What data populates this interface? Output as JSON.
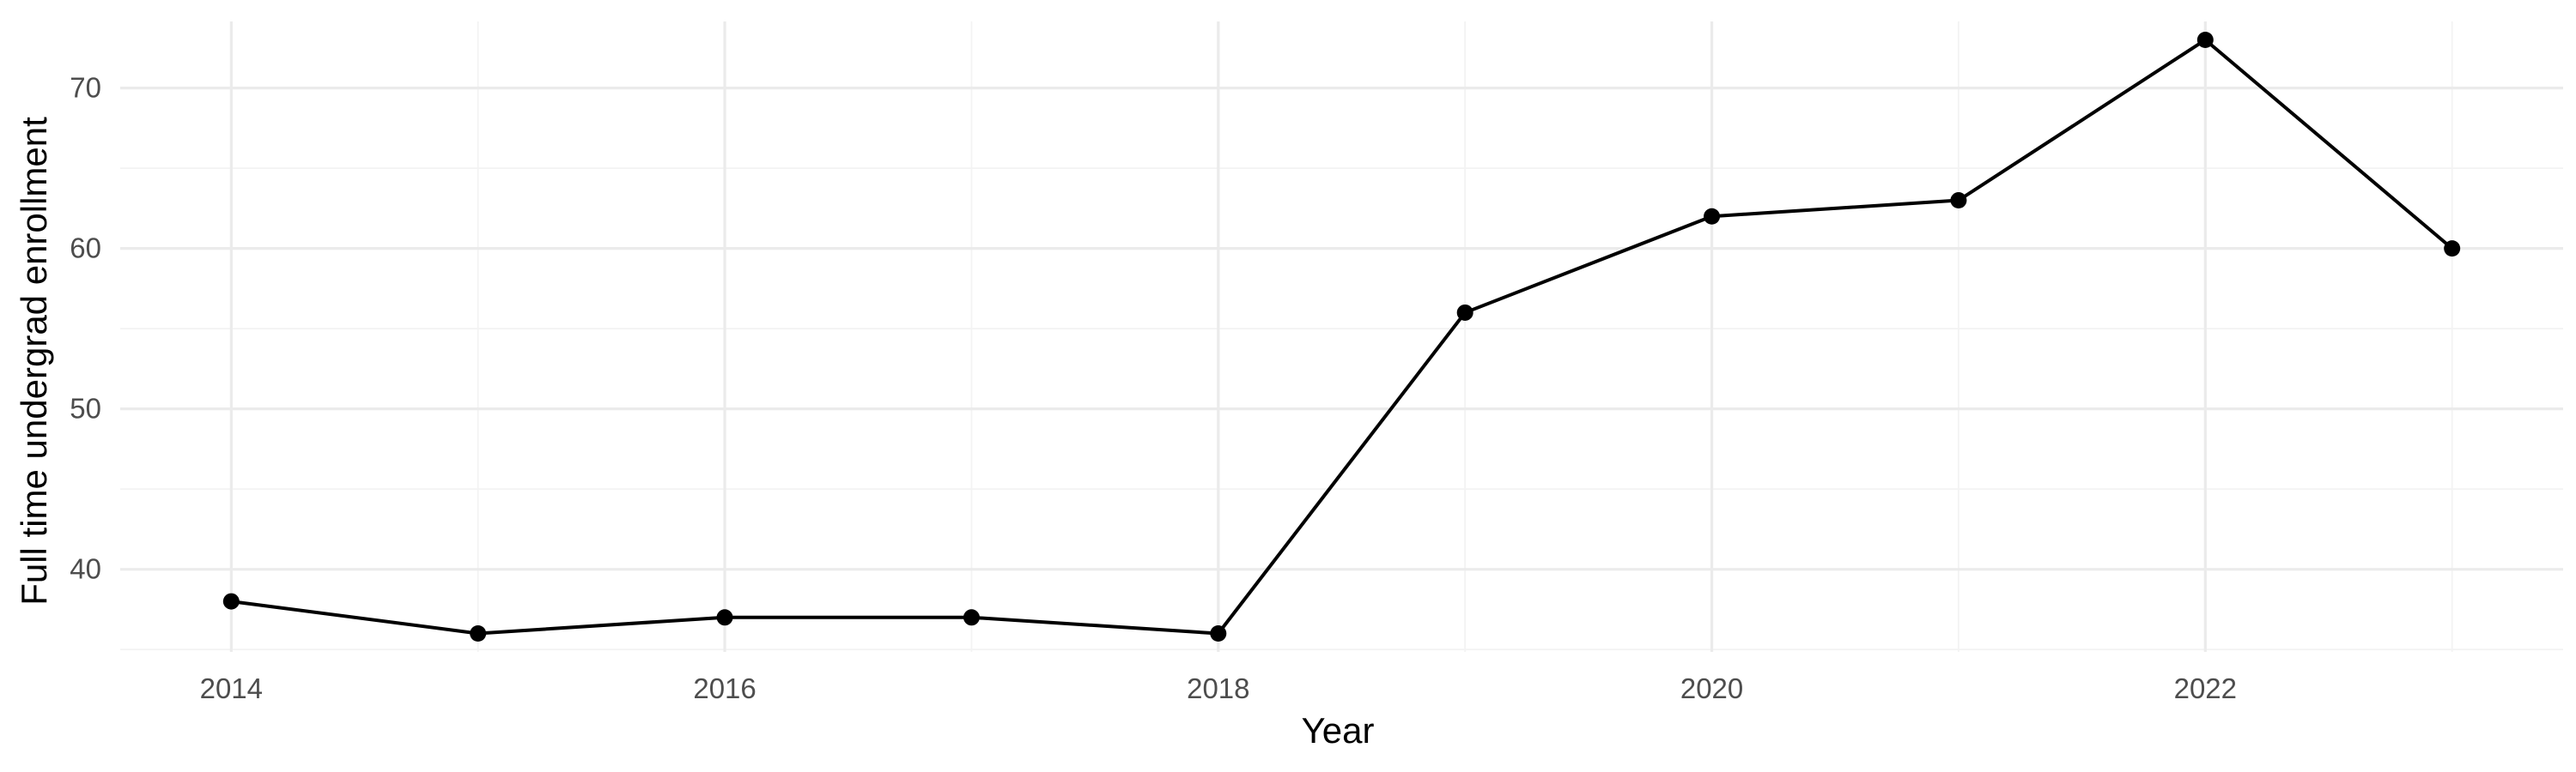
{
  "chart_data": {
    "type": "line",
    "title": "",
    "xlabel": "Year",
    "ylabel": "Full time undergrad enrollment",
    "x": [
      2014,
      2015,
      2016,
      2017,
      2018,
      2019,
      2020,
      2021,
      2022,
      2023
    ],
    "series": [
      {
        "values": [
          38,
          36,
          37,
          37,
          36,
          56,
          62,
          63,
          73,
          60
        ]
      }
    ],
    "xlim": [
      2013.55,
      2023.45
    ],
    "ylim": [
      34.85,
      74.15
    ],
    "x_major_ticks": [
      2014,
      2016,
      2018,
      2020,
      2022
    ],
    "x_tick_labels": [
      "2014",
      "2016",
      "2018",
      "2020",
      "2022"
    ],
    "x_minor_ticks": [
      2015,
      2017,
      2019,
      2021,
      2023
    ],
    "y_major_ticks": [
      40,
      50,
      60,
      70
    ],
    "y_tick_labels": [
      "40",
      "50",
      "60",
      "70"
    ],
    "y_minor_ticks": [
      35,
      45,
      55,
      65
    ],
    "grid": true,
    "legend": "none",
    "colors": {
      "series": "#000000",
      "grid_major": "#ebebeb",
      "grid_minor": "#f3f3f3",
      "tick_text": "#4d4d4d"
    }
  }
}
